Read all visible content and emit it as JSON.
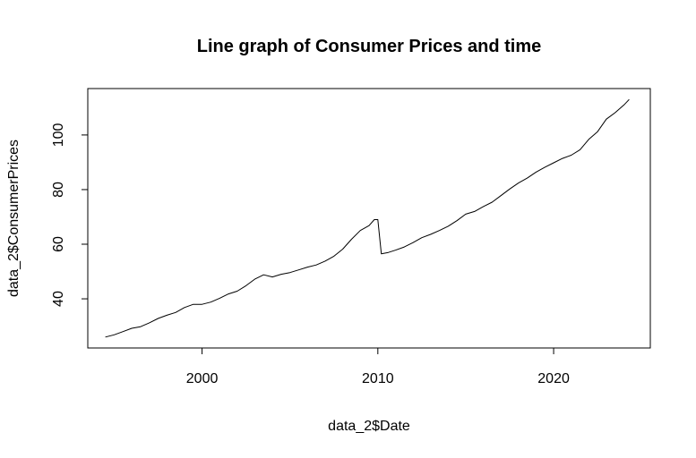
{
  "chart_data": {
    "type": "line",
    "title": "Line graph of Consumer Prices and time",
    "xlabel": "data_2$Date",
    "ylabel": "data_2$ConsumerPrices",
    "xlim": [
      1993.5,
      2025.5
    ],
    "ylim": [
      22,
      117
    ],
    "x_ticks": [
      2000,
      2010,
      2020
    ],
    "y_ticks": [
      40,
      60,
      80,
      100
    ],
    "grid": false,
    "legend": "none",
    "series": [
      {
        "color": "#000000",
        "points": [
          [
            1994.5,
            26.0
          ],
          [
            1995.0,
            26.8
          ],
          [
            1995.5,
            28.0
          ],
          [
            1996.0,
            29.2
          ],
          [
            1996.5,
            29.8
          ],
          [
            1997.0,
            31.2
          ],
          [
            1997.5,
            32.8
          ],
          [
            1998.0,
            34.0
          ],
          [
            1998.5,
            35.0
          ],
          [
            1999.0,
            36.8
          ],
          [
            1999.5,
            38.0
          ],
          [
            2000.0,
            38.0
          ],
          [
            2000.5,
            38.8
          ],
          [
            2001.0,
            40.2
          ],
          [
            2001.5,
            41.8
          ],
          [
            2002.0,
            42.8
          ],
          [
            2002.5,
            44.8
          ],
          [
            2003.0,
            47.2
          ],
          [
            2003.5,
            48.8
          ],
          [
            2004.0,
            48.0
          ],
          [
            2004.5,
            49.0
          ],
          [
            2005.0,
            49.6
          ],
          [
            2005.5,
            50.6
          ],
          [
            2006.0,
            51.6
          ],
          [
            2006.5,
            52.4
          ],
          [
            2007.0,
            53.8
          ],
          [
            2007.5,
            55.6
          ],
          [
            2008.0,
            58.2
          ],
          [
            2008.5,
            61.8
          ],
          [
            2009.0,
            65.0
          ],
          [
            2009.5,
            66.8
          ],
          [
            2009.8,
            69.0
          ],
          [
            2010.0,
            69.0
          ],
          [
            2010.2,
            56.5
          ],
          [
            2010.6,
            57.0
          ],
          [
            2011.0,
            57.8
          ],
          [
            2011.5,
            59.0
          ],
          [
            2012.0,
            60.6
          ],
          [
            2012.5,
            62.4
          ],
          [
            2013.0,
            63.6
          ],
          [
            2013.5,
            65.0
          ],
          [
            2014.0,
            66.6
          ],
          [
            2014.5,
            68.6
          ],
          [
            2015.0,
            71.0
          ],
          [
            2015.5,
            72.0
          ],
          [
            2016.0,
            73.8
          ],
          [
            2016.5,
            75.4
          ],
          [
            2017.0,
            77.8
          ],
          [
            2017.5,
            80.2
          ],
          [
            2018.0,
            82.4
          ],
          [
            2018.5,
            84.2
          ],
          [
            2019.0,
            86.4
          ],
          [
            2019.5,
            88.2
          ],
          [
            2020.0,
            89.8
          ],
          [
            2020.5,
            91.4
          ],
          [
            2021.0,
            92.6
          ],
          [
            2021.5,
            94.6
          ],
          [
            2022.0,
            98.4
          ],
          [
            2022.5,
            101.2
          ],
          [
            2023.0,
            105.8
          ],
          [
            2023.5,
            108.2
          ],
          [
            2024.0,
            111.0
          ],
          [
            2024.3,
            113.0
          ]
        ]
      }
    ]
  }
}
